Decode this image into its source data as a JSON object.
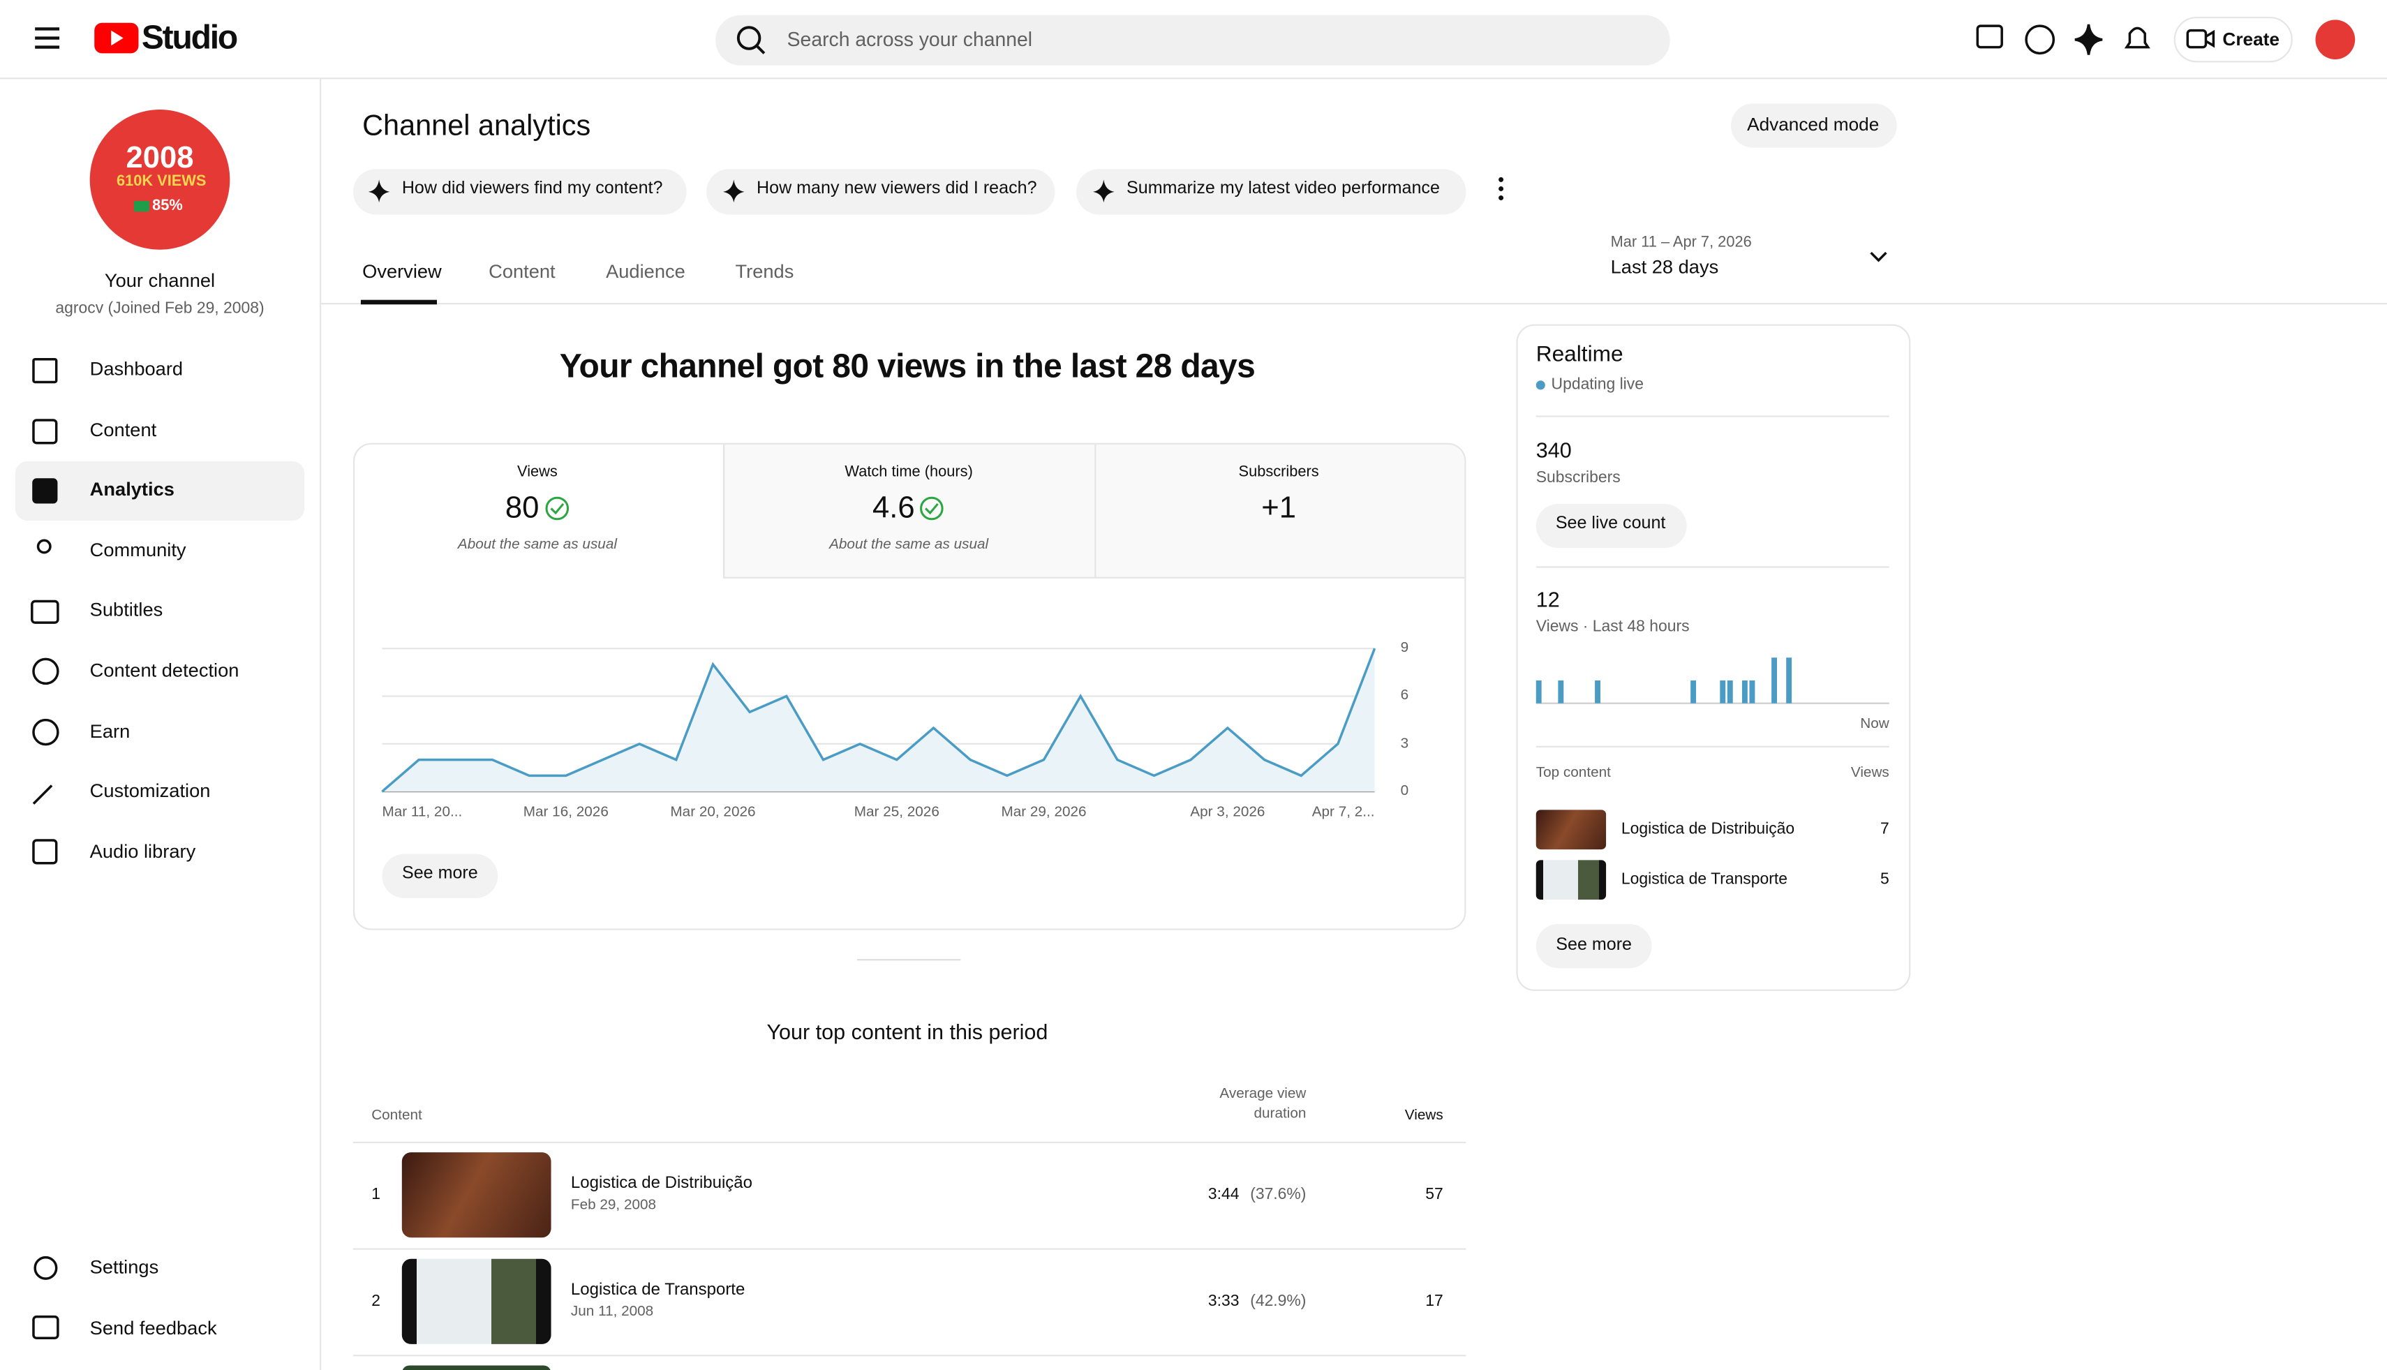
{
  "header": {
    "logo": "Studio",
    "search": "Search across your channel",
    "create": "Create"
  },
  "channel": {
    "avatar_lines": [
      "2008",
      "610K VIEWS",
      "85%"
    ],
    "name": "Your channel",
    "handle": "agrocv (Joined Feb 29, 2008)"
  },
  "nav": [
    "Dashboard",
    "Content",
    "Analytics",
    "Community",
    "Subtitles",
    "Content detection",
    "Earn",
    "Customization",
    "Audio library"
  ],
  "nav_bottom": [
    "Settings",
    "Send feedback"
  ],
  "page": {
    "title": "Channel analytics",
    "advanced": "Advanced mode",
    "prompts": [
      "How did viewers find my content?",
      "How many new viewers did I reach?",
      "Summarize my latest video performance"
    ],
    "tabs": [
      "Overview",
      "Content",
      "Audience",
      "Trends"
    ],
    "date_range": "Mar 11 – Apr 7, 2026",
    "period": "Last 28 days"
  },
  "summary": {
    "headline": "Your channel got 80 views in the last 28 days",
    "metrics": [
      {
        "label": "Views",
        "value": "80",
        "note": "About the same as usual"
      },
      {
        "label": "Watch time (hours)",
        "value": "4.6",
        "note": "About the same as usual"
      },
      {
        "label": "Subscribers",
        "value": "+1"
      }
    ],
    "see_more": "See more"
  },
  "chart_data": [
    {
      "type": "line",
      "color": "#4a9cc4",
      "area_color": "#eaf4f8",
      "grid": true,
      "categories": [
        "Mar 11, 20...",
        null,
        null,
        null,
        null,
        "Mar 16, 2026",
        null,
        null,
        null,
        "Mar 20, 2026",
        null,
        null,
        null,
        null,
        "Mar 25, 2026",
        null,
        null,
        null,
        "Mar 29, 2026",
        null,
        null,
        null,
        null,
        "Apr 3, 2026",
        null,
        null,
        null,
        "Apr 7, 2..."
      ],
      "values": [
        0,
        2,
        2,
        2,
        1,
        1,
        2,
        3,
        2,
        8,
        5,
        6,
        2,
        3,
        2,
        4,
        2,
        1,
        2,
        6,
        2,
        1,
        2,
        4,
        2,
        1,
        3,
        9
      ],
      "ylim": [
        0,
        9
      ],
      "yticks": [
        0,
        3,
        6,
        9
      ]
    },
    {
      "type": "bar",
      "color": "#4a9cc4",
      "values": [
        1,
        0,
        0,
        1,
        0,
        0,
        0,
        0,
        1,
        0,
        0,
        0,
        0,
        0,
        0,
        0,
        0,
        0,
        0,
        0,
        0,
        1,
        0,
        0,
        0,
        1,
        1,
        0,
        1,
        1,
        0,
        0,
        2,
        0,
        2,
        0,
        0,
        0,
        0,
        0,
        0,
        0,
        0,
        0,
        0,
        0,
        0,
        0
      ]
    }
  ],
  "top_content": {
    "title": "Your top content in this period",
    "columns": [
      "Content",
      "Average view duration",
      "Views"
    ],
    "rows": [
      {
        "rank": "1",
        "title": "Logistica de Distribuição",
        "date": "Feb 29, 2008",
        "duration": "3:44",
        "percent": "(37.6%)",
        "views": "57"
      },
      {
        "rank": "2",
        "title": "Logistica de Transporte",
        "date": "Jun 11, 2008",
        "duration": "3:33",
        "percent": "(42.9%)",
        "views": "17"
      }
    ]
  },
  "realtime": {
    "title": "Realtime",
    "status": "Updating live",
    "subscribers": "340",
    "subscribers_label": "Subscribers",
    "live_button": "See live count",
    "views": "12",
    "views_label": "Views · Last 48 hours",
    "now": "Now",
    "top_label": "Top content",
    "views_col": "Views",
    "items": [
      {
        "title": "Logistica de Distribuição",
        "views": "7"
      },
      {
        "title": "Logistica de Transporte",
        "views": "5"
      }
    ],
    "see_more": "See more"
  }
}
